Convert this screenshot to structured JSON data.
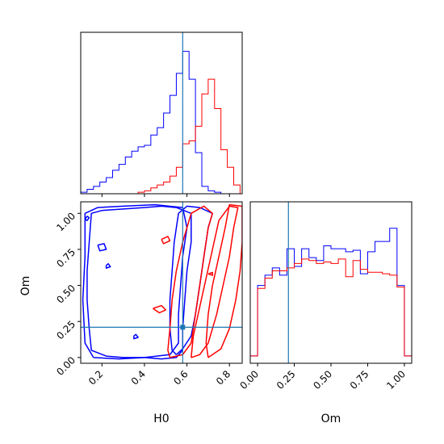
{
  "chart_data": {
    "type": "corner",
    "colors": {
      "series_a": "#0000ff",
      "series_b": "#ff0000",
      "truth": "#1f77b4",
      "frame": "#000000"
    },
    "truth": {
      "H0": 0.58,
      "Om": 0.21
    },
    "panels": [
      {
        "id": "H0-marginal",
        "type": "histogram",
        "xlim": [
          0.1,
          0.86
        ],
        "ylim": [
          0,
          1.1
        ],
        "xticks": [
          0.2,
          0.4,
          0.6,
          0.8
        ],
        "show_tick_labels": false,
        "bins": [
          0.1,
          0.13,
          0.16,
          0.19,
          0.22,
          0.25,
          0.28,
          0.31,
          0.34,
          0.37,
          0.4,
          0.43,
          0.46,
          0.49,
          0.52,
          0.55,
          0.58,
          0.61,
          0.64,
          0.67,
          0.7,
          0.73,
          0.76,
          0.79,
          0.82,
          0.85
        ],
        "series": [
          {
            "values": [
              0.01,
              0.03,
              0.05,
              0.08,
              0.11,
              0.16,
              0.2,
              0.25,
              0.29,
              0.32,
              0.33,
              0.4,
              0.45,
              0.55,
              0.67,
              0.82,
              0.97,
              0.78,
              0.28,
              0.05,
              0.02,
              0.01,
              0.0,
              0.0,
              0.0
            ]
          },
          {
            "values": [
              0.0,
              0.0,
              0.0,
              0.0,
              0.0,
              0.0,
              0.0,
              0.0,
              0.0,
              0.01,
              0.02,
              0.04,
              0.06,
              0.08,
              0.12,
              0.18,
              0.34,
              0.36,
              0.46,
              0.68,
              0.78,
              0.58,
              0.3,
              0.18,
              0.06
            ]
          }
        ]
      },
      {
        "id": "H0-Om-joint",
        "type": "contour",
        "xlabel": "H0",
        "ylabel": "Om",
        "xlim": [
          0.1,
          0.86
        ],
        "ylim": [
          -0.04,
          1.08
        ],
        "xticks": [
          0.2,
          0.4,
          0.6,
          0.8
        ],
        "xtick_labels": [
          "0.2",
          "0.4",
          "0.6",
          "0.8"
        ],
        "yticks": [
          0.0,
          0.25,
          0.5,
          0.75,
          1.0
        ],
        "ytick_labels": [
          "0.00",
          "0.25",
          "0.50",
          "0.75",
          "1.00"
        ],
        "series": [
          {
            "contours": [
              [
                [
                  0.4,
                  0.0
                ],
                [
                  0.48,
                  -0.01
                ],
                [
                  0.55,
                  0.0
                ],
                [
                  0.58,
                  0.05
                ],
                [
                  0.58,
                  0.2
                ],
                [
                  0.59,
                  0.4
                ],
                [
                  0.6,
                  0.6
                ],
                [
                  0.62,
                  0.8
                ],
                [
                  0.62,
                  1.0
                ],
                [
                  0.55,
                  1.04
                ],
                [
                  0.48,
                  1.05
                ],
                [
                  0.4,
                  1.04
                ],
                [
                  0.3,
                  1.03
                ],
                [
                  0.2,
                  1.02
                ],
                [
                  0.15,
                  1.0
                ],
                [
                  0.14,
                  0.8
                ],
                [
                  0.13,
                  0.6
                ],
                [
                  0.13,
                  0.4
                ],
                [
                  0.14,
                  0.2
                ],
                [
                  0.15,
                  0.05
                ],
                [
                  0.22,
                  0.01
                ],
                [
                  0.3,
                  0.0
                ],
                [
                  0.4,
                  0.0
                ]
              ],
              [
                [
                  0.55,
                  0.02
                ],
                [
                  0.58,
                  0.06
                ],
                [
                  0.62,
                  0.15
                ],
                [
                  0.64,
                  0.3
                ],
                [
                  0.66,
                  0.5
                ],
                [
                  0.68,
                  0.7
                ],
                [
                  0.7,
                  0.9
                ],
                [
                  0.72,
                  1.0
                ],
                [
                  0.66,
                  1.04
                ],
                [
                  0.6,
                  1.05
                ],
                [
                  0.56,
                  1.0
                ],
                [
                  0.54,
                  0.8
                ],
                [
                  0.53,
                  0.6
                ],
                [
                  0.52,
                  0.4
                ],
                [
                  0.52,
                  0.2
                ],
                [
                  0.53,
                  0.05
                ],
                [
                  0.55,
                  0.02
                ]
              ],
              [
                [
                  0.16,
                  0.0
                ],
                [
                  0.28,
                  -0.01
                ],
                [
                  0.4,
                  0.0
                ],
                [
                  0.52,
                  0.02
                ],
                [
                  0.56,
                  0.1
                ],
                [
                  0.56,
                  0.3
                ],
                [
                  0.57,
                  0.5
                ],
                [
                  0.58,
                  0.7
                ],
                [
                  0.6,
                  0.9
                ],
                [
                  0.58,
                  1.04
                ],
                [
                  0.45,
                  1.06
                ],
                [
                  0.3,
                  1.05
                ],
                [
                  0.18,
                  1.04
                ],
                [
                  0.12,
                  1.0
                ],
                [
                  0.12,
                  0.7
                ],
                [
                  0.11,
                  0.4
                ],
                [
                  0.12,
                  0.1
                ],
                [
                  0.16,
                  0.0
                ]
              ],
              [
                [
                  0.12,
                  0.96
                ],
                [
                  0.13,
                  0.98
                ],
                [
                  0.14,
                  0.97
                ],
                [
                  0.13,
                  0.95
                ],
                [
                  0.12,
                  0.96
                ]
              ],
              [
                [
                  0.18,
                  0.78
                ],
                [
                  0.21,
                  0.79
                ],
                [
                  0.22,
                  0.75
                ],
                [
                  0.19,
                  0.74
                ],
                [
                  0.18,
                  0.78
                ]
              ],
              [
                [
                  0.22,
                  0.64
                ],
                [
                  0.23,
                  0.65
                ],
                [
                  0.24,
                  0.63
                ],
                [
                  0.22,
                  0.62
                ],
                [
                  0.22,
                  0.64
                ]
              ],
              [
                [
                  0.35,
                  0.15
                ],
                [
                  0.36,
                  0.16
                ],
                [
                  0.37,
                  0.14
                ],
                [
                  0.35,
                  0.13
                ],
                [
                  0.35,
                  0.15
                ]
              ]
            ]
          },
          {
            "contours": [
              [
                [
                  0.52,
                  0.0
                ],
                [
                  0.58,
                  0.02
                ],
                [
                  0.62,
                  0.1
                ],
                [
                  0.64,
                  0.3
                ],
                [
                  0.66,
                  0.5
                ],
                [
                  0.68,
                  0.7
                ],
                [
                  0.7,
                  0.9
                ],
                [
                  0.72,
                  1.0
                ],
                [
                  0.68,
                  1.05
                ],
                [
                  0.62,
                  1.0
                ],
                [
                  0.58,
                  0.8
                ],
                [
                  0.55,
                  0.6
                ],
                [
                  0.53,
                  0.4
                ],
                [
                  0.52,
                  0.2
                ],
                [
                  0.51,
                  0.05
                ],
                [
                  0.52,
                  0.0
                ]
              ],
              [
                [
                  0.62,
                  0.0
                ],
                [
                  0.66,
                  0.02
                ],
                [
                  0.7,
                  0.1
                ],
                [
                  0.74,
                  0.3
                ],
                [
                  0.77,
                  0.5
                ],
                [
                  0.8,
                  0.7
                ],
                [
                  0.82,
                  0.9
                ],
                [
                  0.84,
                  1.04
                ],
                [
                  0.8,
                  1.05
                ],
                [
                  0.75,
                  0.95
                ],
                [
                  0.72,
                  0.75
                ],
                [
                  0.69,
                  0.55
                ],
                [
                  0.66,
                  0.35
                ],
                [
                  0.63,
                  0.15
                ],
                [
                  0.62,
                  0.0
                ]
              ],
              [
                [
                  0.7,
                  0.0
                ],
                [
                  0.76,
                  0.06
                ],
                [
                  0.8,
                  0.2
                ],
                [
                  0.83,
                  0.4
                ],
                [
                  0.85,
                  0.6
                ],
                [
                  0.86,
                  0.8
                ],
                [
                  0.86,
                  1.05
                ],
                [
                  0.8,
                  1.06
                ],
                [
                  0.78,
                  0.9
                ],
                [
                  0.75,
                  0.7
                ],
                [
                  0.72,
                  0.5
                ],
                [
                  0.7,
                  0.3
                ],
                [
                  0.69,
                  0.1
                ],
                [
                  0.7,
                  0.0
                ]
              ],
              [
                [
                  0.44,
                  0.34
                ],
                [
                  0.48,
                  0.36
                ],
                [
                  0.5,
                  0.33
                ],
                [
                  0.47,
                  0.31
                ],
                [
                  0.44,
                  0.34
                ]
              ],
              [
                [
                  0.48,
                  0.82
                ],
                [
                  0.51,
                  0.84
                ],
                [
                  0.52,
                  0.81
                ],
                [
                  0.49,
                  0.79
                ],
                [
                  0.48,
                  0.82
                ]
              ],
              [
                [
                  0.7,
                  0.58
                ],
                [
                  0.72,
                  0.59
                ],
                [
                  0.72,
                  0.57
                ],
                [
                  0.7,
                  0.58
                ]
              ]
            ]
          }
        ]
      },
      {
        "id": "Om-marginal",
        "type": "histogram",
        "xlabel": "Om",
        "xlim": [
          -0.05,
          1.05
        ],
        "ylim": [
          0,
          1.1
        ],
        "xticks": [
          0.0,
          0.25,
          0.5,
          0.75,
          1.0
        ],
        "xtick_labels": [
          "0.00",
          "0.25",
          "0.50",
          "0.75",
          "1.00"
        ],
        "bins": [
          -0.05,
          0.0,
          0.05,
          0.1,
          0.15,
          0.2,
          0.25,
          0.3,
          0.35,
          0.4,
          0.45,
          0.5,
          0.55,
          0.6,
          0.65,
          0.7,
          0.75,
          0.8,
          0.85,
          0.9,
          0.95,
          1.0,
          1.05
        ],
        "series": [
          {
            "values": [
              0.05,
              0.53,
              0.6,
              0.65,
              0.6,
              0.78,
              0.66,
              0.78,
              0.72,
              0.7,
              0.8,
              0.78,
              0.78,
              0.76,
              0.77,
              0.61,
              0.76,
              0.83,
              0.83,
              0.92,
              0.53,
              0.05
            ]
          },
          {
            "values": [
              0.05,
              0.51,
              0.58,
              0.63,
              0.63,
              0.65,
              0.68,
              0.71,
              0.7,
              0.68,
              0.69,
              0.68,
              0.71,
              0.59,
              0.7,
              0.64,
              0.62,
              0.62,
              0.61,
              0.6,
              0.52,
              0.05
            ]
          }
        ]
      }
    ]
  }
}
